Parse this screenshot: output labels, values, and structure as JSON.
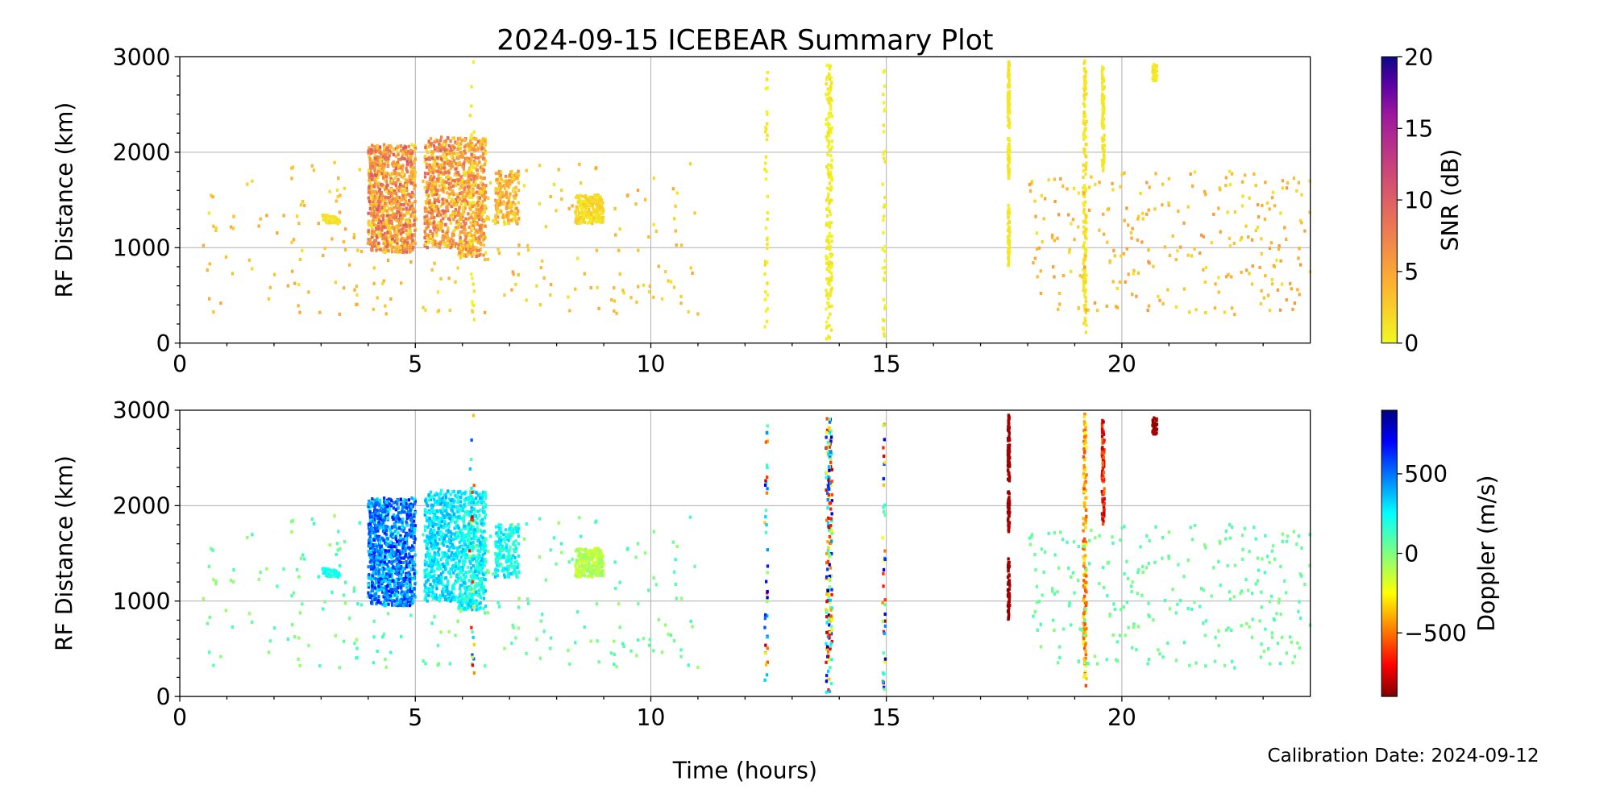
{
  "chart_data": [
    {
      "type": "scatter",
      "title": "2024-09-15 ICEBEAR Summary Plot",
      "panel": "top",
      "xlabel": "",
      "ylabel": "RF Distance (km)",
      "xlim": [
        0,
        24
      ],
      "ylim": [
        0,
        3000
      ],
      "xticks": [
        "0",
        "5",
        "10",
        "15",
        "20"
      ],
      "yticks": [
        "0",
        "1000",
        "2000",
        "3000"
      ],
      "grid": true,
      "color_variable": "snr",
      "colorbar": {
        "label": "SNR (dB)",
        "range": [
          0,
          20
        ],
        "ticks": [
          "0",
          "5",
          "10",
          "15",
          "20"
        ],
        "colormap": "plasma_r"
      }
    },
    {
      "type": "scatter",
      "panel": "bottom",
      "xlabel": "Time (hours)",
      "ylabel": "RF Distance (km)",
      "xlim": [
        0,
        24
      ],
      "ylim": [
        0,
        3000
      ],
      "xticks": [
        "0",
        "5",
        "10",
        "15",
        "20"
      ],
      "yticks": [
        "0",
        "1000",
        "2000",
        "3000"
      ],
      "grid": true,
      "color_variable": "doppler",
      "colorbar": {
        "label": "Doppler (m/s)",
        "range": [
          -900,
          900
        ],
        "ticks": [
          "500",
          "0",
          "−500"
        ],
        "tick_values": [
          500,
          0,
          -500
        ],
        "colormap": "jet_r"
      }
    }
  ],
  "clusters": [
    {
      "t": [
        0.5,
        11.0
      ],
      "d": [
        300,
        1900
      ],
      "n": 260,
      "snr": [
        1,
        5
      ],
      "dop": [
        -60,
        160
      ]
    },
    {
      "t": [
        4.0,
        5.0
      ],
      "d": [
        950,
        2080
      ],
      "n": 900,
      "snr": [
        1,
        11
      ],
      "dop": [
        250,
        700
      ]
    },
    {
      "t": [
        5.2,
        5.9
      ],
      "d": [
        1000,
        2160
      ],
      "n": 500,
      "snr": [
        1,
        10
      ],
      "dop": [
        180,
        420
      ]
    },
    {
      "t": [
        5.9,
        6.5
      ],
      "d": [
        900,
        2150
      ],
      "n": 500,
      "snr": [
        1,
        9
      ],
      "dop": [
        120,
        380
      ]
    },
    {
      "t": [
        6.7,
        7.2
      ],
      "d": [
        1250,
        1800
      ],
      "n": 180,
      "snr": [
        1,
        7
      ],
      "dop": [
        100,
        350
      ]
    },
    {
      "t": [
        8.4,
        9.0
      ],
      "d": [
        1250,
        1550
      ],
      "n": 220,
      "snr": [
        0.5,
        3
      ],
      "dop": [
        -180,
        -20
      ]
    },
    {
      "t": [
        3.0,
        3.4
      ],
      "d": [
        1250,
        1340
      ],
      "n": 40,
      "snr": [
        1,
        2
      ],
      "dop": [
        180,
        260
      ]
    },
    {
      "t": [
        6.15,
        6.25
      ],
      "d": [
        100,
        2950
      ],
      "n": 30,
      "snr": [
        0,
        2
      ],
      "dop": [
        -800,
        800
      ]
    },
    {
      "t": [
        12.42,
        12.48
      ],
      "d": [
        0,
        2950
      ],
      "n": 40,
      "snr": [
        0,
        1.5
      ],
      "dop": [
        -850,
        850
      ]
    },
    {
      "t": [
        13.72,
        13.85
      ],
      "d": [
        0,
        2950
      ],
      "n": 170,
      "snr": [
        0,
        1.5
      ],
      "dop": [
        -850,
        850
      ]
    },
    {
      "t": [
        14.92,
        14.98
      ],
      "d": [
        0,
        2950
      ],
      "n": 40,
      "snr": [
        0,
        1.5
      ],
      "dop": [
        -850,
        850
      ]
    },
    {
      "t": [
        17.58,
        17.62
      ],
      "d": [
        800,
        1450
      ],
      "n": 60,
      "snr": [
        0.5,
        1.5
      ],
      "dop": [
        -880,
        -820
      ]
    },
    {
      "t": [
        17.58,
        17.62
      ],
      "d": [
        1700,
        2960
      ],
      "n": 110,
      "snr": [
        0.5,
        1.5
      ],
      "dop": [
        -880,
        -820
      ]
    },
    {
      "t": [
        19.18,
        19.25
      ],
      "d": [
        100,
        2960
      ],
      "n": 150,
      "snr": [
        0.5,
        2
      ],
      "dop": [
        -600,
        -200
      ]
    },
    {
      "t": [
        19.58,
        19.63
      ],
      "d": [
        1800,
        2900
      ],
      "n": 80,
      "snr": [
        0.5,
        1.5
      ],
      "dop": [
        -850,
        -500
      ]
    },
    {
      "t": [
        20.65,
        20.75
      ],
      "d": [
        2750,
        2920
      ],
      "n": 30,
      "snr": [
        0.5,
        1.5
      ],
      "dop": [
        -880,
        -820
      ]
    },
    {
      "t": [
        18.0,
        24.0
      ],
      "d": [
        300,
        1800
      ],
      "n": 260,
      "snr": [
        1,
        6
      ],
      "dop": [
        -20,
        120
      ]
    }
  ],
  "footer": {
    "calibration": "Calibration Date: 2024-09-12"
  }
}
